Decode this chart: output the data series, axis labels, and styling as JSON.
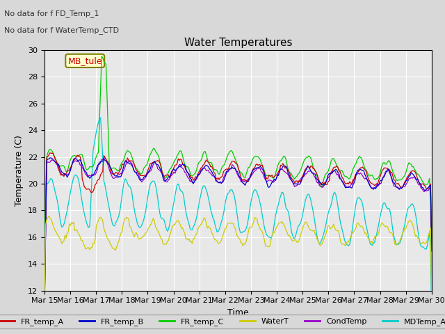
{
  "title": "Water Temperatures",
  "xlabel": "Time",
  "ylabel": "Temperature (C)",
  "ylim": [
    12,
    30
  ],
  "yticks": [
    12,
    14,
    16,
    18,
    20,
    22,
    24,
    26,
    28,
    30
  ],
  "annotations": [
    "No data for f FD_Temp_1",
    "No data for f WaterTemp_CTD"
  ],
  "mb_tule_label": "MB_tule",
  "legend_entries": [
    {
      "label": "FR_temp_A",
      "color": "#cc0000"
    },
    {
      "label": "FR_temp_B",
      "color": "#0000cc"
    },
    {
      "label": "FR_temp_C",
      "color": "#00cc00"
    },
    {
      "label": "WaterT",
      "color": "#cccc00"
    },
    {
      "label": "CondTemp",
      "color": "#9900cc"
    },
    {
      "label": "MDTemp_A",
      "color": "#00cccc"
    }
  ],
  "x_tick_labels": [
    "Mar 15",
    "Mar 16",
    "Mar 17",
    "Mar 18",
    "Mar 19",
    "Mar 20",
    "Mar 21",
    "Mar 22",
    "Mar 23",
    "Mar 24",
    "Mar 25",
    "Mar 26",
    "Mar 27",
    "Mar 28",
    "Mar 29",
    "Mar 30"
  ],
  "background_color": "#d8d8d8",
  "plot_bg_color": "#e8e8e8",
  "grid_color": "#ffffff"
}
